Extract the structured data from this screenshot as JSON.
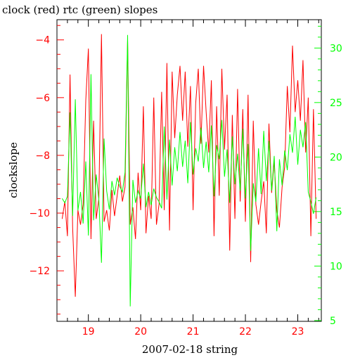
{
  "chart_data": {
    "type": "line",
    "title": "clock (red) rtc (green) slopes",
    "xlabel": "2007-02-18 string",
    "ylabel": "clockslope",
    "y2label": "",
    "xlim": [
      18.4,
      23.45
    ],
    "ylim": [
      -13.75,
      -3.3
    ],
    "y2lim": [
      4.93,
      32.6
    ],
    "x_ticks": [
      19,
      20,
      21,
      22,
      23
    ],
    "y_ticks": [
      -12,
      -10,
      -8,
      -6,
      -4
    ],
    "y2_ticks": [
      5,
      10,
      15,
      20,
      25,
      30
    ],
    "grid": false,
    "colors": {
      "clock": "#ff0000",
      "rtc": "#00ff00",
      "axis": "#000000"
    },
    "series": [
      {
        "color": "#ff0000",
        "axis": "left",
        "x": [
          18.5,
          18.55,
          18.6,
          18.65,
          18.7,
          18.75,
          18.8,
          18.85,
          18.9,
          18.95,
          19.0,
          19.05,
          19.1,
          19.15,
          19.2,
          19.25,
          19.3,
          19.35,
          19.4,
          19.45,
          19.5,
          19.55,
          19.6,
          19.65,
          19.7,
          19.75,
          19.8,
          19.85,
          19.9,
          19.95,
          20.0,
          20.05,
          20.1,
          20.15,
          20.2,
          20.25,
          20.3,
          20.35,
          20.4,
          20.45,
          20.5,
          20.55,
          20.6,
          20.65,
          20.7,
          20.75,
          20.8,
          20.85,
          20.9,
          20.95,
          21.0,
          21.05,
          21.1,
          21.15,
          21.2,
          21.25,
          21.3,
          21.35,
          21.4,
          21.45,
          21.5,
          21.55,
          21.6,
          21.65,
          21.7,
          21.75,
          21.8,
          21.85,
          21.9,
          21.95,
          22.0,
          22.05,
          22.1,
          22.15,
          22.2,
          22.25,
          22.3,
          22.35,
          22.4,
          22.45,
          22.5,
          22.55,
          22.6,
          22.65,
          22.7,
          22.75,
          22.8,
          22.85,
          22.9,
          22.95,
          23.0,
          23.05,
          23.1,
          23.15,
          23.2,
          23.25,
          23.3,
          23.35
        ],
        "y": [
          -10.2,
          -9.6,
          -10.8,
          -5.2,
          -10.5,
          -12.9,
          -9.9,
          -10.4,
          -9.7,
          -6.1,
          -4.3,
          -10.9,
          -6.8,
          -10.2,
          -9.5,
          -3.8,
          -10.3,
          -9.9,
          -10.6,
          -9.2,
          -10.1,
          -9.4,
          -8.7,
          -9.6,
          -9.1,
          -4.0,
          -10.4,
          -9.8,
          -10.9,
          -8.6,
          -9.9,
          -6.3,
          -10.7,
          -9.4,
          -10.2,
          -6.0,
          -10.4,
          -9.7,
          -5.8,
          -9.9,
          -4.8,
          -10.6,
          -5.1,
          -7.4,
          -5.9,
          -4.9,
          -6.8,
          -5.1,
          -7.7,
          -5.6,
          -9.9,
          -6.2,
          -5.0,
          -7.6,
          -4.9,
          -6.5,
          -7.9,
          -5.4,
          -10.8,
          -6.3,
          -9.4,
          -5.0,
          -7.8,
          -5.9,
          -11.3,
          -6.6,
          -10.2,
          -5.7,
          -9.6,
          -6.4,
          -10.3,
          -5.9,
          -11.7,
          -6.8,
          -9.7,
          -10.4,
          -9.6,
          -8.9,
          -10.7,
          -6.9,
          -9.3,
          -8.2,
          -9.9,
          -10.5,
          -9.1,
          -8.4,
          -5.6,
          -7.2,
          -4.2,
          -6.5,
          -5.4,
          -6.8,
          -4.7,
          -7.9,
          -6.0,
          -10.8,
          -6.4,
          -10.2
        ]
      },
      {
        "color": "#00ff00",
        "axis": "right",
        "x": [
          18.5,
          18.55,
          18.6,
          18.65,
          18.7,
          18.75,
          18.8,
          18.85,
          18.9,
          18.95,
          19.0,
          19.05,
          19.1,
          19.15,
          19.2,
          19.25,
          19.3,
          19.35,
          19.4,
          19.45,
          19.5,
          19.55,
          19.6,
          19.65,
          19.7,
          19.75,
          19.8,
          19.85,
          19.9,
          19.95,
          20.0,
          20.05,
          20.1,
          20.15,
          20.2,
          20.25,
          20.3,
          20.35,
          20.4,
          20.45,
          20.5,
          20.55,
          20.6,
          20.65,
          20.7,
          20.75,
          20.8,
          20.85,
          20.9,
          20.95,
          21.0,
          21.05,
          21.1,
          21.15,
          21.2,
          21.25,
          21.3,
          21.35,
          21.4,
          21.45,
          21.5,
          21.55,
          21.6,
          21.65,
          21.7,
          21.75,
          21.8,
          21.85,
          21.9,
          21.95,
          22.0,
          22.05,
          22.1,
          22.15,
          22.2,
          22.25,
          22.3,
          22.35,
          22.4,
          22.45,
          22.5,
          22.55,
          22.6,
          22.65,
          22.7,
          22.75,
          22.8,
          22.85,
          22.9,
          22.95,
          23.0,
          23.05,
          23.1,
          23.15,
          23.2,
          23.25,
          23.3,
          23.35
        ],
        "y": [
          16.2,
          15.8,
          16.4,
          24.1,
          14.6,
          25.3,
          15.1,
          16.8,
          13.9,
          19.6,
          12.8,
          27.6,
          14.2,
          18.4,
          16.1,
          10.3,
          21.7,
          16.9,
          15.2,
          17.8,
          16.5,
          18.1,
          17.3,
          16.8,
          18.6,
          31.2,
          6.3,
          17.9,
          15.8,
          16.9,
          16.2,
          19.4,
          15.4,
          16.8,
          15.6,
          17.1,
          16.3,
          15.9,
          15.3,
          22.8,
          16.1,
          21.6,
          17.4,
          20.9,
          18.7,
          22.3,
          19.1,
          21.5,
          17.6,
          23.2,
          18.4,
          20.8,
          19.6,
          22.7,
          19.0,
          21.4,
          18.6,
          22.9,
          16.4,
          21.1,
          19.8,
          23.4,
          18.2,
          20.7,
          15.8,
          21.9,
          17.5,
          20.3,
          16.9,
          22.6,
          16.2,
          21.2,
          11.4,
          17.6,
          15.9,
          20.8,
          16.6,
          22.4,
          17.8,
          21.5,
          16.9,
          20.1,
          13.2,
          19.8,
          17.4,
          20.6,
          18.8,
          22.1,
          20.4,
          23.7,
          19.3,
          22.5,
          20.9,
          23.2,
          16.8,
          15.9,
          14.8,
          16.3
        ]
      }
    ]
  }
}
